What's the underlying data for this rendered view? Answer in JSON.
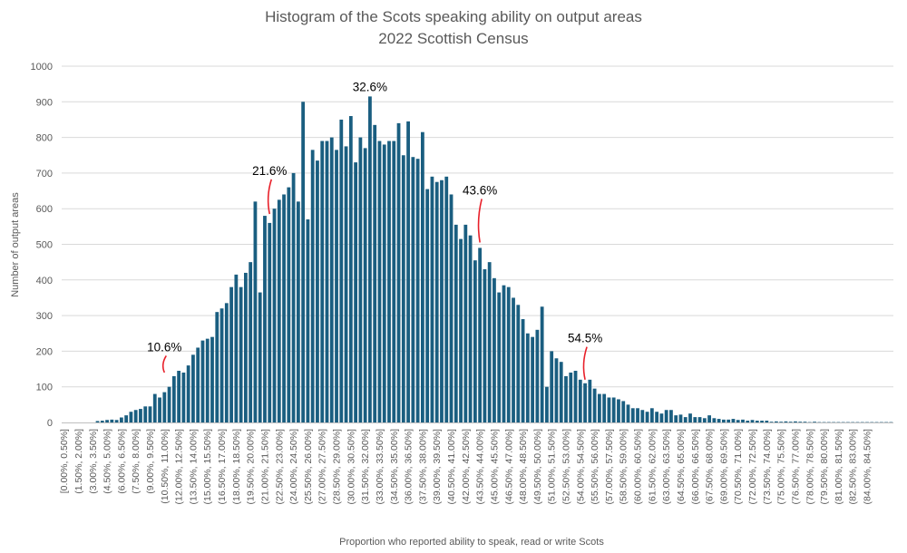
{
  "chart_data": {
    "type": "bar",
    "title": "Histogram of the Scots speaking ability on output areas",
    "subtitle": "2022 Scottish Census",
    "xlabel": "Proportion who reported ability to speak, read or write Scots",
    "ylabel": "Number of output areas",
    "ylim": [
      0,
      1000
    ],
    "ytick_step": 100,
    "grid": true,
    "bin_width_pct": 0.5,
    "tick_every_n_bins": 3,
    "tick_labels": [
      "[0.00%, 0.50%]",
      "(1.50%, 2.00%]",
      "(3.00%, 3.50%]",
      "(4.50%, 5.00%]",
      "(6.00%, 6.50%]",
      "(7.50%, 8.00%]",
      "(9.00%, 9.50%]",
      "(10.50%, 11.00%]",
      "(12.00%, 12.50%]",
      "(13.50%, 14.00%]",
      "(15.00%, 15.50%]",
      "(16.50%, 17.00%]",
      "(18.00%, 18.50%]",
      "(19.50%, 20.00%]",
      "(21.00%, 21.50%]",
      "(22.50%, 23.00%]",
      "(24.00%, 24.50%]",
      "(25.50%, 26.00%]",
      "(27.00%, 27.50%]",
      "(28.50%, 29.00%]",
      "(30.00%, 30.50%]",
      "(31.50%, 32.00%]",
      "(33.00%, 33.50%]",
      "(34.50%, 35.00%]",
      "(36.00%, 36.50%]",
      "(37.50%, 38.00%]",
      "(39.00%, 39.50%]",
      "(40.50%, 41.00%]",
      "(42.00%, 42.50%]",
      "(43.50%, 44.00%]",
      "(45.00%, 45.50%]",
      "(46.50%, 47.00%]",
      "(48.00%, 48.50%]",
      "(49.50%, 50.00%]",
      "(51.00%, 51.50%]",
      "(52.50%, 53.00%]",
      "(54.00%, 54.50%]",
      "(55.50%, 56.00%]",
      "(57.00%, 57.50%]",
      "(58.50%, 59.00%]",
      "(60.00%, 60.50%]",
      "(61.50%, 62.00%]",
      "(63.00%, 63.50%]",
      "(64.50%, 65.00%]",
      "(66.00%, 66.50%]",
      "(67.50%, 68.00%]",
      "(69.00%, 69.50%]",
      "(70.50%, 71.00%]",
      "(72.00%, 72.50%]",
      "(73.50%, 74.00%]",
      "(75.00%, 75.50%]",
      "(76.50%, 77.00%]",
      "(78.00%, 78.50%]",
      "(79.50%, 80.00%]",
      "(81.00%, 81.50%]",
      "(82.50%, 83.00%]",
      "(84.00%, 84.50%]"
    ],
    "values": [
      0,
      0,
      0,
      0,
      0,
      0,
      0,
      4,
      5,
      7,
      8,
      7,
      14,
      20,
      30,
      35,
      38,
      45,
      45,
      80,
      70,
      85,
      100,
      130,
      145,
      140,
      160,
      190,
      210,
      230,
      235,
      240,
      310,
      320,
      335,
      380,
      415,
      380,
      420,
      450,
      620,
      365,
      580,
      560,
      600,
      625,
      640,
      660,
      700,
      620,
      900,
      570,
      765,
      735,
      790,
      790,
      800,
      765,
      850,
      775,
      860,
      730,
      800,
      770,
      915,
      835,
      790,
      780,
      790,
      790,
      840,
      750,
      845,
      745,
      740,
      815,
      655,
      690,
      675,
      680,
      690,
      640,
      555,
      515,
      555,
      525,
      455,
      490,
      430,
      450,
      405,
      365,
      385,
      380,
      350,
      330,
      290,
      250,
      240,
      260,
      325,
      100,
      200,
      180,
      170,
      130,
      140,
      145,
      120,
      110,
      120,
      95,
      80,
      80,
      70,
      70,
      65,
      60,
      50,
      40,
      40,
      35,
      30,
      40,
      30,
      25,
      35,
      35,
      20,
      22,
      15,
      25,
      15,
      15,
      12,
      20,
      12,
      10,
      8,
      8,
      10,
      7,
      8,
      5,
      7,
      5,
      5,
      5,
      2,
      3,
      2,
      3,
      2,
      3,
      2,
      2,
      1,
      2,
      1,
      1,
      1,
      1,
      1,
      1,
      1,
      1,
      1,
      1,
      1,
      1,
      1,
      1,
      1,
      1
    ],
    "annotations": [
      {
        "label": "10.6%",
        "bin_index": 21,
        "at_value": 140,
        "text_value": 200
      },
      {
        "label": "21.6%",
        "bin_index": 43,
        "at_value": 585,
        "text_value": 695
      },
      {
        "label": "32.6%",
        "bin_index": 64,
        "at_value": 920,
        "text_value": 930
      },
      {
        "label": "43.6%",
        "bin_index": 87,
        "at_value": 505,
        "text_value": 640
      },
      {
        "label": "54.5%",
        "bin_index": 109,
        "at_value": 120,
        "text_value": 225
      }
    ],
    "colors": {
      "bar": "#1a5e80",
      "grid": "#d9d9d9",
      "annotation_line": "#e8202a"
    }
  }
}
